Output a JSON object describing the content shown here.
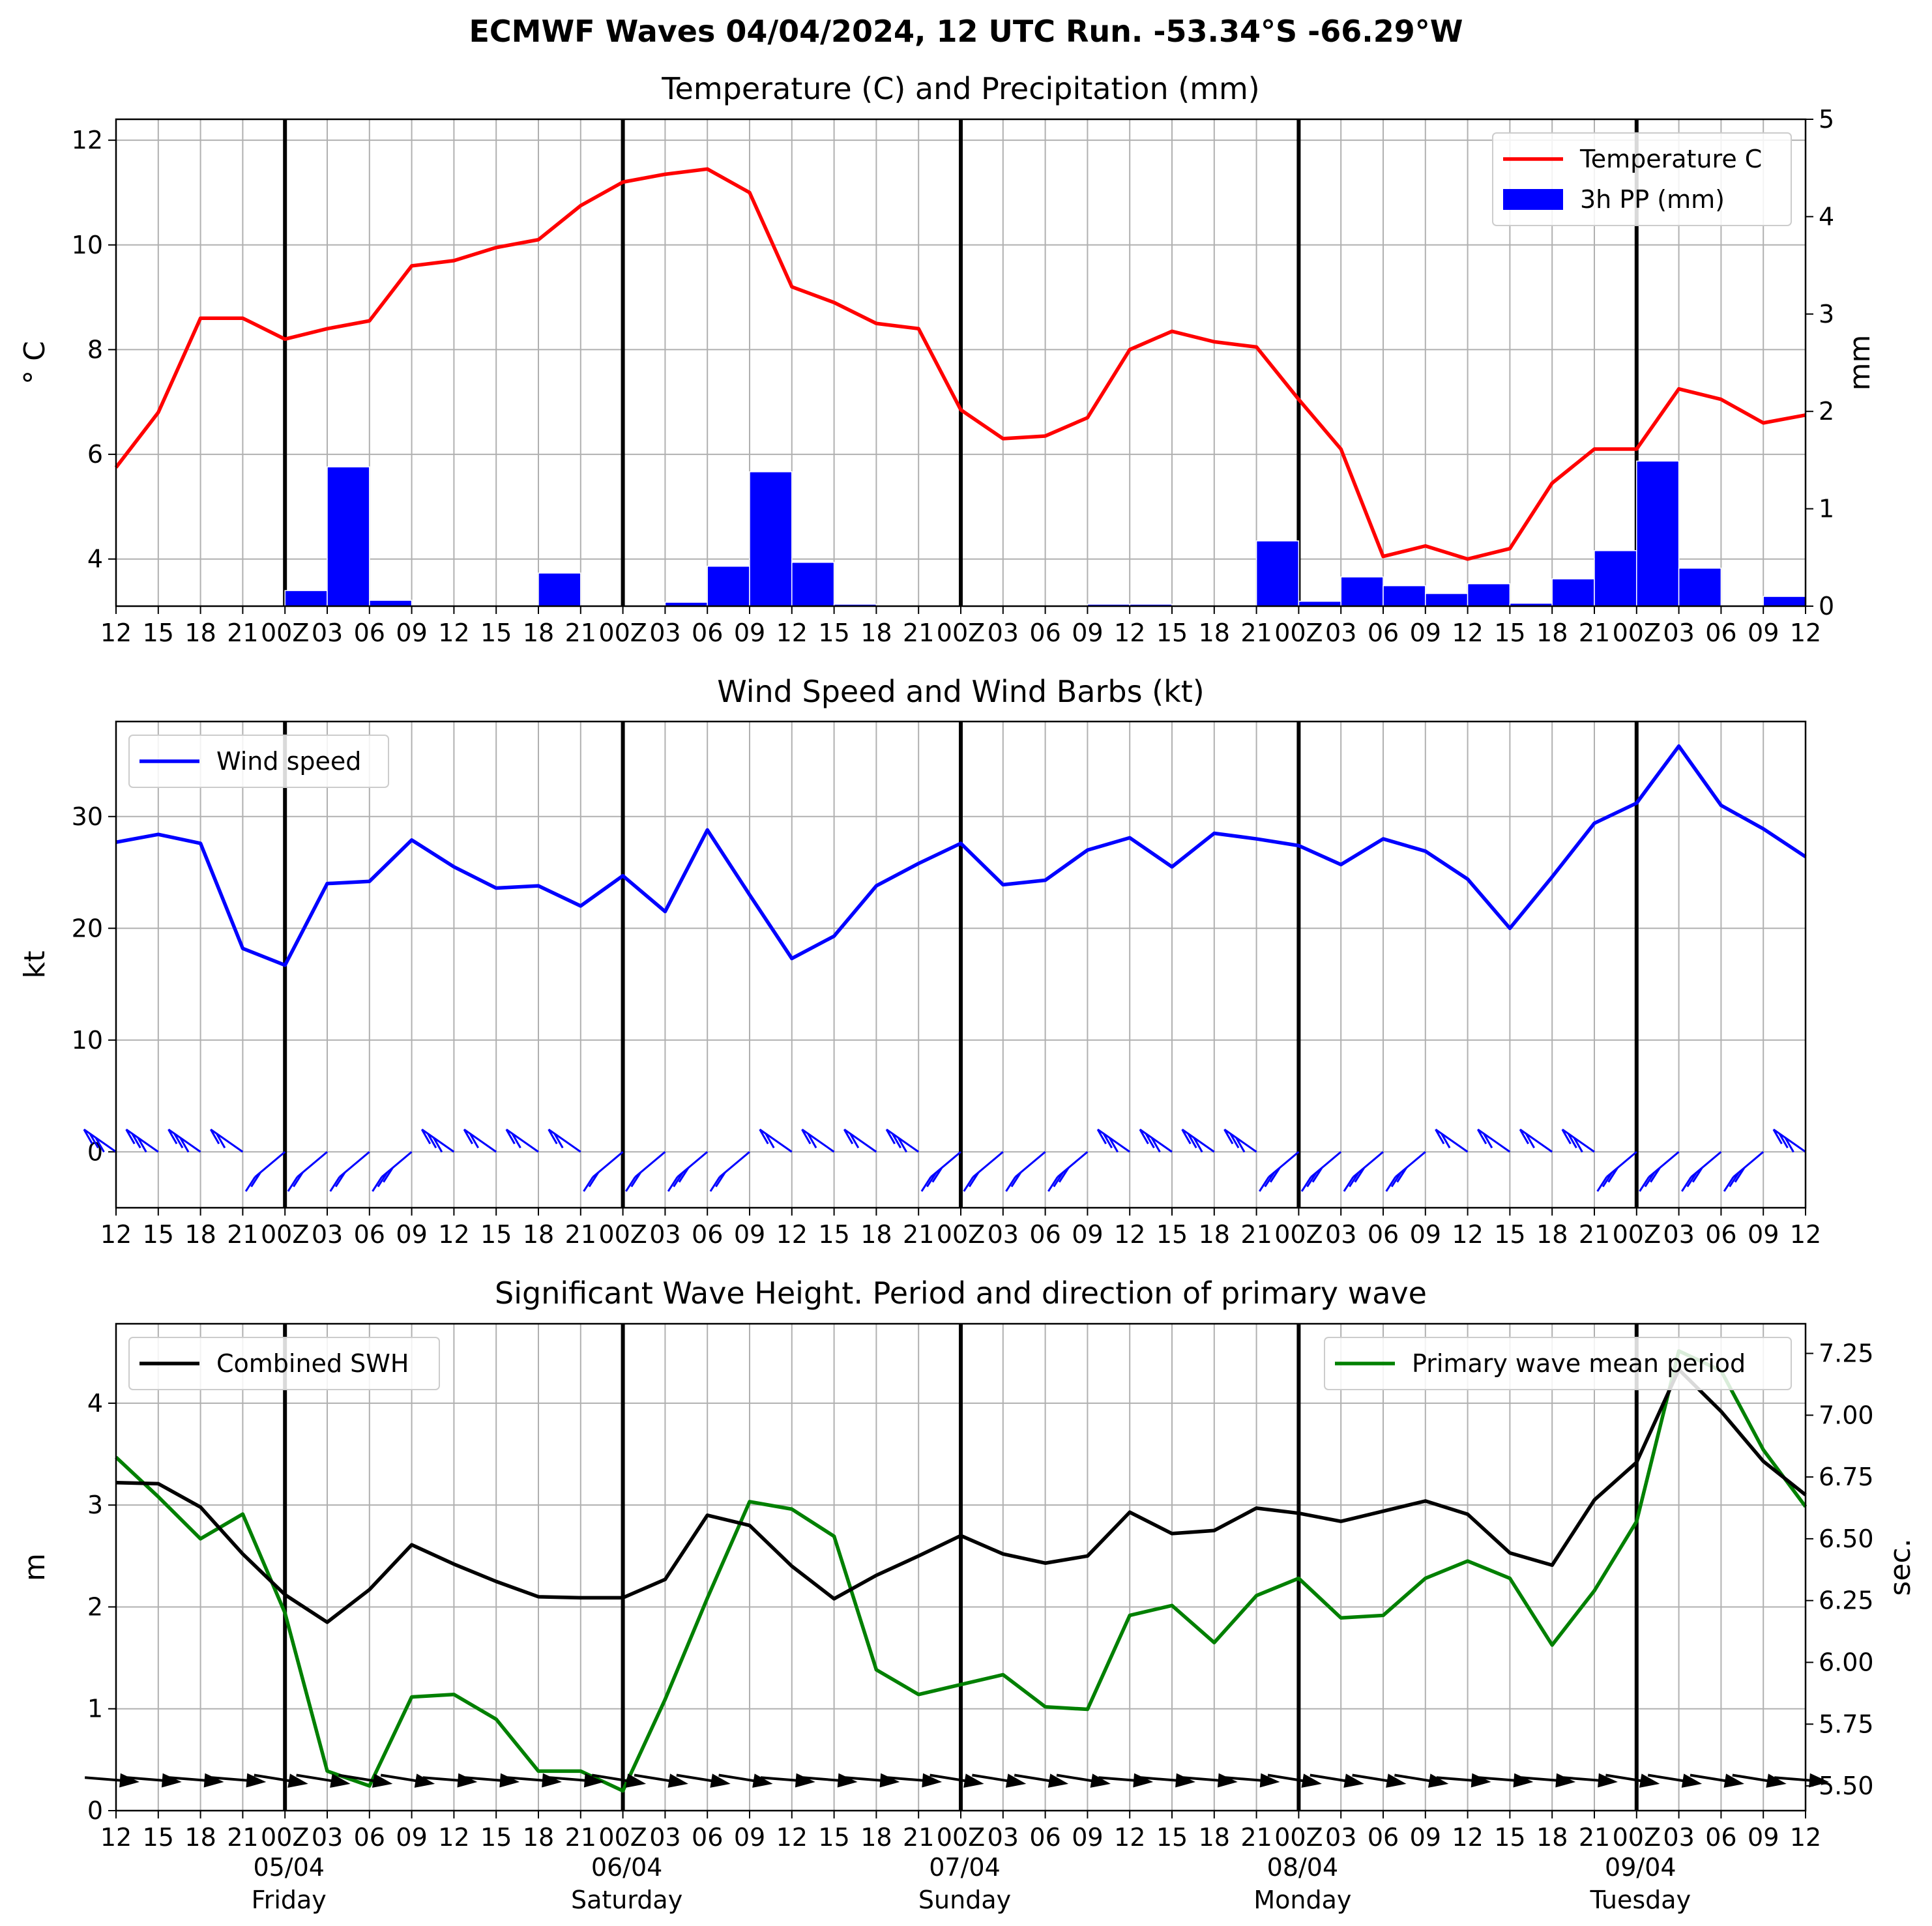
{
  "title": "ECMWF Waves 04/04/2024, 12 UTC Run. -53.34°S -66.29°W",
  "colors": {
    "temperature": "#ff0000",
    "precip": "#0000ff",
    "wind": "#0000ff",
    "barbs": "#0000ff",
    "swh": "#000000",
    "period": "#008000",
    "grid": "#b0b0b0"
  },
  "x_tick_labels": [
    "12",
    "15",
    "18",
    "21",
    "00Z",
    "03",
    "06",
    "09",
    "12",
    "15",
    "18",
    "21",
    "00Z",
    "03",
    "06",
    "09",
    "12",
    "15",
    "18",
    "21",
    "00Z",
    "03",
    "06",
    "09",
    "12",
    "15",
    "18",
    "21",
    "00Z",
    "03",
    "06",
    "09",
    "12",
    "15",
    "18",
    "21",
    "00Z",
    "03",
    "06",
    "09",
    "12"
  ],
  "day_labels": [
    {
      "date": "05/04",
      "day": "Friday",
      "index": 4
    },
    {
      "date": "06/04",
      "day": "Saturday",
      "index": 12
    },
    {
      "date": "07/04",
      "day": "Sunday",
      "index": 20
    },
    {
      "date": "08/04",
      "day": "Monday",
      "index": 28
    },
    {
      "date": "09/04",
      "day": "Tuesday",
      "index": 36
    }
  ],
  "chart_data": [
    {
      "type": "line",
      "title": "Temperature (C) and Precipitation (mm)",
      "ylabel": "° C",
      "ylabel_right": "mm",
      "ylim": [
        3.1,
        12.4
      ],
      "yticks": [
        4,
        6,
        8,
        10,
        12
      ],
      "ylim_right": [
        0,
        5
      ],
      "yticks_right": [
        0,
        1,
        2,
        3,
        4,
        5
      ],
      "legend": {
        "placement": "top-right",
        "entries": [
          "Temperature C",
          "3h PP (mm)"
        ]
      },
      "series": [
        {
          "name": "Temperature C",
          "axis": "left",
          "values": [
            5.75,
            6.8,
            8.6,
            8.6,
            8.2,
            8.4,
            8.55,
            9.6,
            9.7,
            9.95,
            10.1,
            10.75,
            11.2,
            11.35,
            11.45,
            11.0,
            9.2,
            8.9,
            8.5,
            8.4,
            6.85,
            6.3,
            6.35,
            6.7,
            8.0,
            8.35,
            8.15,
            8.05,
            7.05,
            6.1,
            4.05,
            4.25,
            4.0,
            4.2,
            5.45,
            6.1,
            6.1,
            7.25,
            7.05,
            6.6,
            6.75
          ]
        },
        {
          "name": "3h PP (mm)",
          "type": "bar",
          "axis": "right",
          "values": [
            0,
            0,
            0,
            0,
            0.16,
            1.43,
            0.06,
            0,
            0,
            0,
            0.34,
            0,
            0,
            0.04,
            0.41,
            1.38,
            0.45,
            0.02,
            0,
            0,
            0,
            0,
            0,
            0.02,
            0.02,
            0,
            0,
            0.67,
            0.05,
            0.3,
            0.21,
            0.13,
            0.23,
            0.03,
            0.28,
            0.57,
            1.49,
            0.39,
            0,
            0.1
          ]
        }
      ],
      "grid": true
    },
    {
      "type": "line",
      "title": "Wind Speed and Wind Barbs (kt)",
      "ylabel": "kt",
      "ylim": [
        -5,
        38.5
      ],
      "yticks": [
        0,
        10,
        20,
        30
      ],
      "legend": {
        "placement": "top-left",
        "entries": [
          "Wind speed"
        ]
      },
      "series": [
        {
          "name": "Wind speed",
          "values": [
            27.7,
            28.4,
            27.6,
            18.2,
            16.7,
            24.0,
            24.2,
            27.9,
            25.5,
            23.6,
            23.8,
            22.0,
            24.7,
            21.5,
            28.8,
            23.0,
            17.3,
            19.3,
            23.8,
            25.8,
            27.6,
            23.9,
            24.3,
            27.0,
            28.1,
            25.5,
            28.5,
            28.0,
            27.4,
            25.7,
            28.0,
            26.9,
            24.4,
            20.0,
            24.6,
            29.4,
            31.2,
            36.3,
            31.0,
            28.9,
            26.4
          ]
        }
      ],
      "barbs": {
        "y": 0,
        "count": 41
      },
      "grid": true
    },
    {
      "type": "line",
      "title": "Significant Wave Height. Period and direction of primary wave",
      "ylabel": "m",
      "ylabel_right": "sec.",
      "ylim": [
        0,
        4.78
      ],
      "yticks": [
        0,
        1,
        2,
        3,
        4
      ],
      "ylim_right": [
        5.4,
        7.37
      ],
      "yticks_right": [
        "5.50",
        "5.75",
        "6.00",
        "6.25",
        "6.50",
        "6.75",
        "7.00",
        "7.25"
      ],
      "legend": [
        {
          "placement": "top-left",
          "entries": [
            "Combined SWH"
          ]
        },
        {
          "placement": "top-right",
          "entries": [
            "Primary wave mean period"
          ]
        }
      ],
      "series": [
        {
          "name": "Combined SWH",
          "axis": "left",
          "values": [
            3.22,
            3.21,
            2.98,
            2.52,
            2.12,
            1.85,
            2.17,
            2.61,
            2.42,
            2.25,
            2.1,
            2.09,
            2.09,
            2.27,
            2.9,
            2.8,
            2.4,
            2.08,
            2.31,
            2.5,
            2.7,
            2.52,
            2.43,
            2.5,
            2.93,
            2.72,
            2.75,
            2.97,
            2.92,
            2.84,
            2.94,
            3.04,
            2.91,
            2.53,
            2.41,
            3.05,
            3.42,
            4.33,
            3.92,
            3.43,
            3.1
          ]
        },
        {
          "name": "Primary wave mean period",
          "axis": "right",
          "values": [
            6.83,
            6.67,
            6.5,
            6.6,
            6.2,
            5.56,
            5.5,
            5.86,
            5.87,
            5.77,
            5.56,
            5.56,
            5.48,
            5.85,
            6.26,
            6.65,
            6.62,
            6.51,
            5.97,
            5.87,
            5.91,
            5.95,
            5.82,
            5.81,
            6.19,
            6.23,
            6.08,
            6.27,
            6.34,
            6.18,
            6.19,
            6.34,
            6.41,
            6.34,
            6.07,
            6.29,
            6.57,
            7.26,
            7.18,
            6.86,
            6.63
          ]
        }
      ],
      "direction_arrows": {
        "y": 0.3,
        "count": 41
      },
      "grid": true
    }
  ]
}
